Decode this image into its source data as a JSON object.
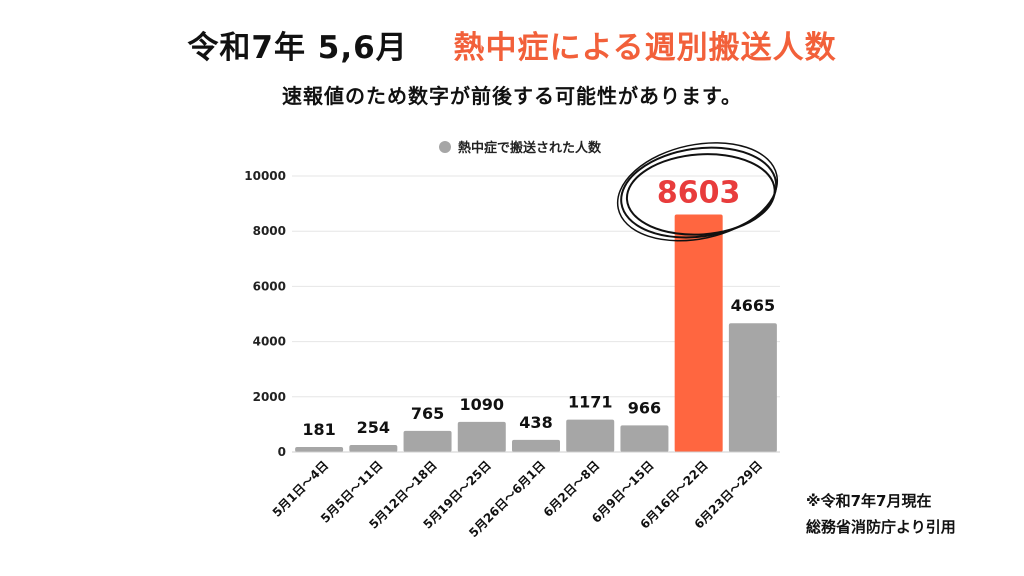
{
  "header": {
    "title_main": "令和7年 5,6月",
    "title_accent": "熱中症による週別搬送人数",
    "subtitle": "速報値のため数字が前後する可能性があります。"
  },
  "note": {
    "line1": "※令和7年7月現在",
    "line2": "総務省消防庁より引用"
  },
  "colors": {
    "accent": "#f2603a",
    "bar": "#a6a6a6",
    "highlight_bar": "#ff6640",
    "highlight_label": "#e83c3c",
    "grid": "#e6e6e6"
  },
  "chart_data": {
    "type": "bar",
    "legend": {
      "label": "熱中症で搬送された人数",
      "position": "top"
    },
    "categories": [
      "5月1日～4日",
      "5月5日～11日",
      "5月12日～18日",
      "5月19日～25日",
      "5月26日～6月1日",
      "6月2日～8日",
      "6月9日～15日",
      "6月16日～22日",
      "6月23日～29日"
    ],
    "values": [
      181,
      254,
      765,
      1090,
      438,
      1171,
      966,
      8603,
      4665
    ],
    "highlight_index": 7,
    "ylim": [
      0,
      10000
    ],
    "yticks": [
      0,
      2000,
      4000,
      6000,
      8000,
      10000
    ],
    "grid": true
  }
}
